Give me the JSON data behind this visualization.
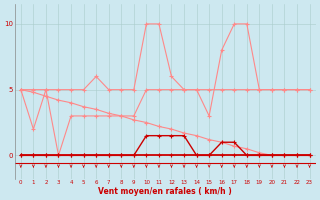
{
  "x": [
    0,
    1,
    2,
    3,
    4,
    5,
    6,
    7,
    8,
    9,
    10,
    11,
    12,
    13,
    14,
    15,
    16,
    17,
    18,
    19,
    20,
    21,
    22,
    23
  ],
  "rafales": [
    5,
    2,
    5,
    5,
    5,
    5,
    6,
    5,
    5,
    5,
    10,
    10,
    6,
    5,
    5,
    3,
    8,
    10,
    10,
    5,
    5,
    5,
    5,
    5
  ],
  "moy_vent": [
    5,
    5,
    5,
    0,
    3,
    3,
    3,
    3,
    3,
    3,
    5,
    5,
    5,
    5,
    5,
    5,
    5,
    5,
    5,
    5,
    5,
    5,
    5,
    5
  ],
  "dark1": [
    0,
    0,
    0,
    0,
    0,
    0,
    0,
    0,
    0,
    0,
    1.5,
    1.5,
    1.5,
    1.5,
    0,
    0,
    1,
    1,
    0,
    0,
    0,
    0,
    0,
    0
  ],
  "dark2": [
    0,
    0,
    0,
    0,
    0,
    0,
    0,
    0,
    0,
    0,
    0,
    0,
    0,
    0,
    0,
    0,
    0,
    0,
    0,
    0,
    0,
    0,
    0,
    0
  ],
  "diagonal": [
    5,
    4.8,
    4.5,
    4.2,
    4.0,
    3.7,
    3.5,
    3.2,
    3.0,
    2.7,
    2.5,
    2.2,
    2.0,
    1.7,
    1.5,
    1.2,
    1.0,
    0.7,
    0.5,
    0.2,
    0,
    0,
    0,
    0
  ],
  "bg_color": "#cde8f0",
  "line_color_dark": "#cc0000",
  "line_color_light": "#ff8888",
  "grid_color": "#aacccc",
  "xlabel": "Vent moyen/en rafales ( km/h )",
  "ylabel_ticks": [
    0,
    5,
    10
  ],
  "xlim": [
    -0.5,
    23.5
  ],
  "ylim": [
    -1.8,
    11.5
  ]
}
